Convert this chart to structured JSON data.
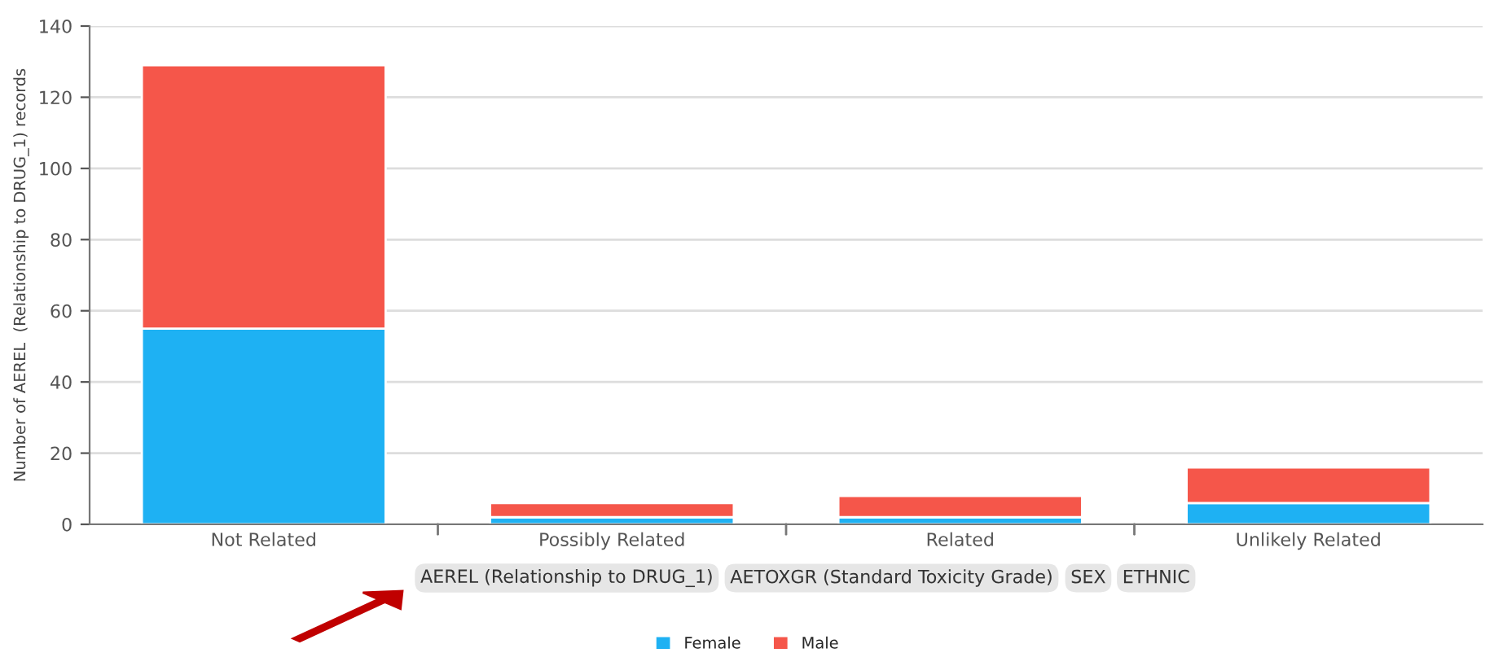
{
  "chart_data": {
    "type": "bar",
    "stacked": true,
    "ylabel": "Number of AEREL  (Relationship to DRUG_1) records",
    "categories": [
      "Not Related",
      "Possibly Related",
      "Related",
      "Unlikely Related"
    ],
    "series": [
      {
        "name": "Female",
        "color": "#1eb1f3",
        "values": [
          55,
          2,
          2,
          6
        ]
      },
      {
        "name": "Male",
        "color": "#f5564a",
        "values": [
          74,
          4,
          6,
          10
        ]
      }
    ],
    "ylim": [
      0,
      140
    ],
    "yticks": [
      0,
      20,
      40,
      60,
      80,
      100,
      120,
      140
    ],
    "grid": "y",
    "legend": "bottom",
    "annotations": [
      "AEREL (Relationship to DRUG_1)",
      "AETOXGR (Standard Toxicity Grade)",
      "SEX",
      "ETHNIC"
    ]
  }
}
